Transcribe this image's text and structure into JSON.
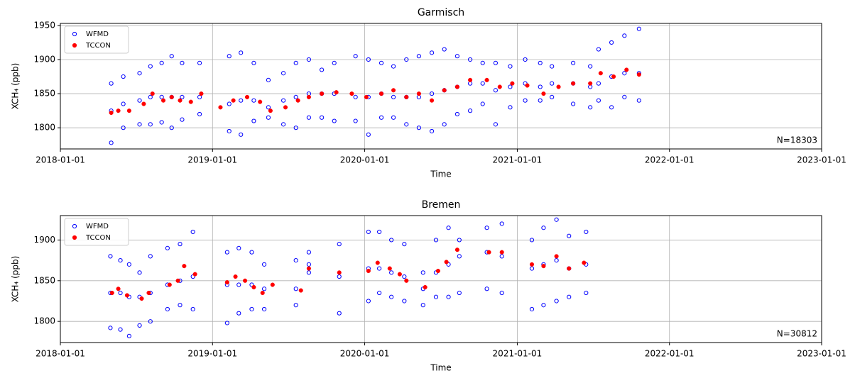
{
  "chart_data": [
    {
      "type": "scatter",
      "title": "Garmisch",
      "xlabel": "Time",
      "ylabel": "XCH₄ (ppb)",
      "annotation": "N=18303",
      "xlim": [
        "2018-01-01",
        "2023-01-01"
      ],
      "xticks": [
        "2018-01-01",
        "2019-01-01",
        "2020-01-01",
        "2021-01-01",
        "2022-01-01",
        "2023-01-01"
      ],
      "ylim": [
        1769,
        1953
      ],
      "yticks": [
        1800,
        1850,
        1900,
        1950
      ],
      "grid": true,
      "legend": "upper left",
      "series": [
        {
          "name": "WFMD",
          "color": "#0000ff",
          "marker": "open",
          "x": [
            "2018-05-03",
            "2018-05-03",
            "2018-05-03",
            "2018-06-01",
            "2018-06-01",
            "2018-06-01",
            "2018-07-10",
            "2018-07-10",
            "2018-07-10",
            "2018-08-05",
            "2018-08-05",
            "2018-08-05",
            "2018-09-01",
            "2018-09-01",
            "2018-09-01",
            "2018-09-25",
            "2018-09-25",
            "2018-09-25",
            "2018-10-20",
            "2018-10-20",
            "2018-10-20",
            "2018-12-01",
            "2018-12-01",
            "2018-12-01",
            "2019-02-10",
            "2019-02-10",
            "2019-02-10",
            "2019-03-10",
            "2019-03-10",
            "2019-03-10",
            "2019-04-10",
            "2019-04-10",
            "2019-04-10",
            "2019-05-15",
            "2019-05-15",
            "2019-05-15",
            "2019-06-20",
            "2019-06-20",
            "2019-06-20",
            "2019-07-20",
            "2019-07-20",
            "2019-07-20",
            "2019-08-20",
            "2019-08-20",
            "2019-08-20",
            "2019-09-20",
            "2019-09-20",
            "2019-09-20",
            "2019-10-20",
            "2019-10-20",
            "2019-10-20",
            "2019-12-10",
            "2019-12-10",
            "2019-12-10",
            "2020-01-10",
            "2020-01-10",
            "2020-01-10",
            "2020-02-10",
            "2020-02-10",
            "2020-02-10",
            "2020-03-10",
            "2020-03-10",
            "2020-03-10",
            "2020-04-10",
            "2020-04-10",
            "2020-04-10",
            "2020-05-10",
            "2020-05-10",
            "2020-05-10",
            "2020-06-10",
            "2020-06-10",
            "2020-06-10",
            "2020-07-10",
            "2020-07-10",
            "2020-07-10",
            "2020-08-10",
            "2020-08-10",
            "2020-08-10",
            "2020-09-10",
            "2020-09-10",
            "2020-09-10",
            "2020-10-10",
            "2020-10-10",
            "2020-10-10",
            "2020-11-10",
            "2020-11-10",
            "2020-11-10",
            "2020-12-15",
            "2020-12-15",
            "2020-12-15",
            "2021-01-20",
            "2021-01-20",
            "2021-01-20",
            "2021-02-25",
            "2021-02-25",
            "2021-02-25",
            "2021-03-25",
            "2021-03-25",
            "2021-03-25",
            "2021-05-15",
            "2021-05-15",
            "2021-05-15",
            "2021-06-25",
            "2021-06-25",
            "2021-06-25",
            "2021-07-15",
            "2021-07-15",
            "2021-07-15",
            "2021-08-15",
            "2021-08-15",
            "2021-08-15",
            "2021-09-15",
            "2021-09-15",
            "2021-09-15",
            "2021-10-20",
            "2021-10-20",
            "2021-10-20"
          ],
          "values": [
            1778,
            1825,
            1865,
            1800,
            1835,
            1875,
            1805,
            1840,
            1880,
            1805,
            1845,
            1890,
            1808,
            1845,
            1895,
            1800,
            1845,
            1905,
            1812,
            1845,
            1895,
            1820,
            1845,
            1895,
            1795,
            1835,
            1905,
            1790,
            1840,
            1910,
            1810,
            1840,
            1895,
            1815,
            1830,
            1870,
            1805,
            1840,
            1880,
            1800,
            1845,
            1895,
            1815,
            1850,
            1900,
            1815,
            1850,
            1885,
            1810,
            1850,
            1895,
            1810,
            1845,
            1905,
            1790,
            1845,
            1900,
            1815,
            1850,
            1895,
            1815,
            1845,
            1890,
            1805,
            1845,
            1900,
            1800,
            1845,
            1905,
            1795,
            1850,
            1910,
            1805,
            1855,
            1915,
            1820,
            1860,
            1905,
            1825,
            1865,
            1900,
            1835,
            1865,
            1895,
            1805,
            1855,
            1895,
            1830,
            1860,
            1890,
            1840,
            1865,
            1900,
            1840,
            1860,
            1895,
            1845,
            1865,
            1890,
            1835,
            1865,
            1895,
            1830,
            1860,
            1890,
            1840,
            1865,
            1915,
            1830,
            1875,
            1925,
            1845,
            1880,
            1935,
            1840,
            1880,
            1945
          ]
        },
        {
          "name": "TCCON",
          "color": "#ff0000",
          "marker": "filled",
          "x": [
            "2018-05-03",
            "2018-05-20",
            "2018-06-15",
            "2018-07-20",
            "2018-08-10",
            "2018-09-05",
            "2018-09-25",
            "2018-10-15",
            "2018-11-10",
            "2018-12-05",
            "2019-01-20",
            "2019-02-20",
            "2019-03-25",
            "2019-04-25",
            "2019-05-20",
            "2019-06-25",
            "2019-07-25",
            "2019-08-20",
            "2019-09-20",
            "2019-10-25",
            "2019-12-01",
            "2020-01-05",
            "2020-02-10",
            "2020-03-10",
            "2020-04-10",
            "2020-05-10",
            "2020-06-10",
            "2020-07-10",
            "2020-08-10",
            "2020-09-10",
            "2020-10-20",
            "2020-11-20",
            "2020-12-20",
            "2021-01-25",
            "2021-03-05",
            "2021-04-10",
            "2021-05-15",
            "2021-06-25",
            "2021-07-20",
            "2021-08-20",
            "2021-09-20",
            "2021-10-20"
          ],
          "values": [
            1822,
            1825,
            1825,
            1835,
            1850,
            1840,
            1845,
            1840,
            1838,
            1850,
            1830,
            1840,
            1845,
            1838,
            1825,
            1830,
            1840,
            1845,
            1850,
            1852,
            1850,
            1845,
            1850,
            1855,
            1845,
            1850,
            1840,
            1855,
            1860,
            1870,
            1870,
            1860,
            1865,
            1862,
            1850,
            1860,
            1865,
            1865,
            1880,
            1875,
            1885,
            1878
          ]
        }
      ]
    },
    {
      "type": "scatter",
      "title": "Bremen",
      "xlabel": "Time",
      "ylabel": "XCH₄ (ppb)",
      "annotation": "N=30812",
      "xlim": [
        "2018-01-01",
        "2023-01-01"
      ],
      "xticks": [
        "2018-01-01",
        "2019-01-01",
        "2020-01-01",
        "2021-01-01",
        "2022-01-01",
        "2023-01-01"
      ],
      "ylim": [
        1774,
        1930
      ],
      "yticks": [
        1800,
        1850,
        1900
      ],
      "grid": true,
      "legend": "upper left",
      "series": [
        {
          "name": "WFMD",
          "color": "#0000ff",
          "marker": "open",
          "x": [
            "2018-05-01",
            "2018-05-01",
            "2018-05-01",
            "2018-05-25",
            "2018-05-25",
            "2018-05-25",
            "2018-06-15",
            "2018-06-15",
            "2018-06-15",
            "2018-07-10",
            "2018-07-10",
            "2018-07-10",
            "2018-08-05",
            "2018-08-05",
            "2018-08-05",
            "2018-09-15",
            "2018-09-15",
            "2018-09-15",
            "2018-10-15",
            "2018-10-15",
            "2018-10-15",
            "2018-11-15",
            "2018-11-15",
            "2018-11-15",
            "2019-02-05",
            "2019-02-05",
            "2019-02-05",
            "2019-03-05",
            "2019-03-05",
            "2019-03-05",
            "2019-04-05",
            "2019-04-05",
            "2019-04-05",
            "2019-05-05",
            "2019-05-05",
            "2019-05-05",
            "2019-07-20",
            "2019-07-20",
            "2019-07-20",
            "2019-08-20",
            "2019-08-20",
            "2019-08-20",
            "2019-11-01",
            "2019-11-01",
            "2019-11-01",
            "2020-01-10",
            "2020-01-10",
            "2020-01-10",
            "2020-02-05",
            "2020-02-05",
            "2020-02-05",
            "2020-03-05",
            "2020-03-05",
            "2020-03-05",
            "2020-04-05",
            "2020-04-05",
            "2020-04-05",
            "2020-05-20",
            "2020-05-20",
            "2020-05-20",
            "2020-06-20",
            "2020-06-20",
            "2020-06-20",
            "2020-07-20",
            "2020-07-20",
            "2020-07-20",
            "2020-08-15",
            "2020-08-15",
            "2020-08-15",
            "2020-10-20",
            "2020-10-20",
            "2020-10-20",
            "2020-11-25",
            "2020-11-25",
            "2020-11-25",
            "2021-02-05",
            "2021-02-05",
            "2021-02-05",
            "2021-03-05",
            "2021-03-05",
            "2021-03-05",
            "2021-04-05",
            "2021-04-05",
            "2021-04-05",
            "2021-05-05",
            "2021-05-05",
            "2021-05-05",
            "2021-06-15",
            "2021-06-15",
            "2021-06-15"
          ],
          "values": [
            1792,
            1835,
            1880,
            1790,
            1835,
            1875,
            1782,
            1830,
            1870,
            1795,
            1830,
            1860,
            1800,
            1835,
            1880,
            1815,
            1845,
            1890,
            1820,
            1850,
            1895,
            1815,
            1855,
            1910,
            1798,
            1845,
            1885,
            1810,
            1845,
            1890,
            1815,
            1845,
            1885,
            1815,
            1840,
            1870,
            1820,
            1840,
            1875,
            1860,
            1870,
            1885,
            1810,
            1855,
            1895,
            1825,
            1865,
            1910,
            1835,
            1865,
            1910,
            1830,
            1860,
            1900,
            1825,
            1855,
            1895,
            1820,
            1840,
            1860,
            1830,
            1860,
            1900,
            1830,
            1870,
            1915,
            1835,
            1880,
            1900,
            1840,
            1885,
            1915,
            1835,
            1880,
            1920,
            1815,
            1865,
            1900,
            1820,
            1870,
            1915,
            1825,
            1875,
            1925,
            1830,
            1865,
            1905,
            1835,
            1870,
            1910
          ]
        },
        {
          "name": "TCCON",
          "color": "#ff0000",
          "marker": "filled",
          "x": [
            "2018-05-05",
            "2018-05-20",
            "2018-06-10",
            "2018-07-15",
            "2018-08-01",
            "2018-09-20",
            "2018-10-10",
            "2018-10-25",
            "2018-11-20",
            "2019-02-05",
            "2019-02-25",
            "2019-03-20",
            "2019-04-10",
            "2019-05-01",
            "2019-05-25",
            "2019-08-01",
            "2019-08-20",
            "2019-11-01",
            "2020-01-10",
            "2020-02-01",
            "2020-03-01",
            "2020-03-25",
            "2020-04-10",
            "2020-05-25",
            "2020-06-25",
            "2020-07-15",
            "2020-08-10",
            "2020-10-25",
            "2020-11-25",
            "2021-02-05",
            "2021-03-05",
            "2021-04-05",
            "2021-05-05",
            "2021-06-10"
          ],
          "values": [
            1835,
            1840,
            1832,
            1828,
            1835,
            1845,
            1850,
            1868,
            1858,
            1848,
            1855,
            1850,
            1842,
            1835,
            1845,
            1838,
            1865,
            1860,
            1862,
            1872,
            1865,
            1858,
            1850,
            1842,
            1862,
            1873,
            1888,
            1885,
            1885,
            1870,
            1868,
            1880,
            1865,
            1872
          ]
        }
      ]
    }
  ]
}
